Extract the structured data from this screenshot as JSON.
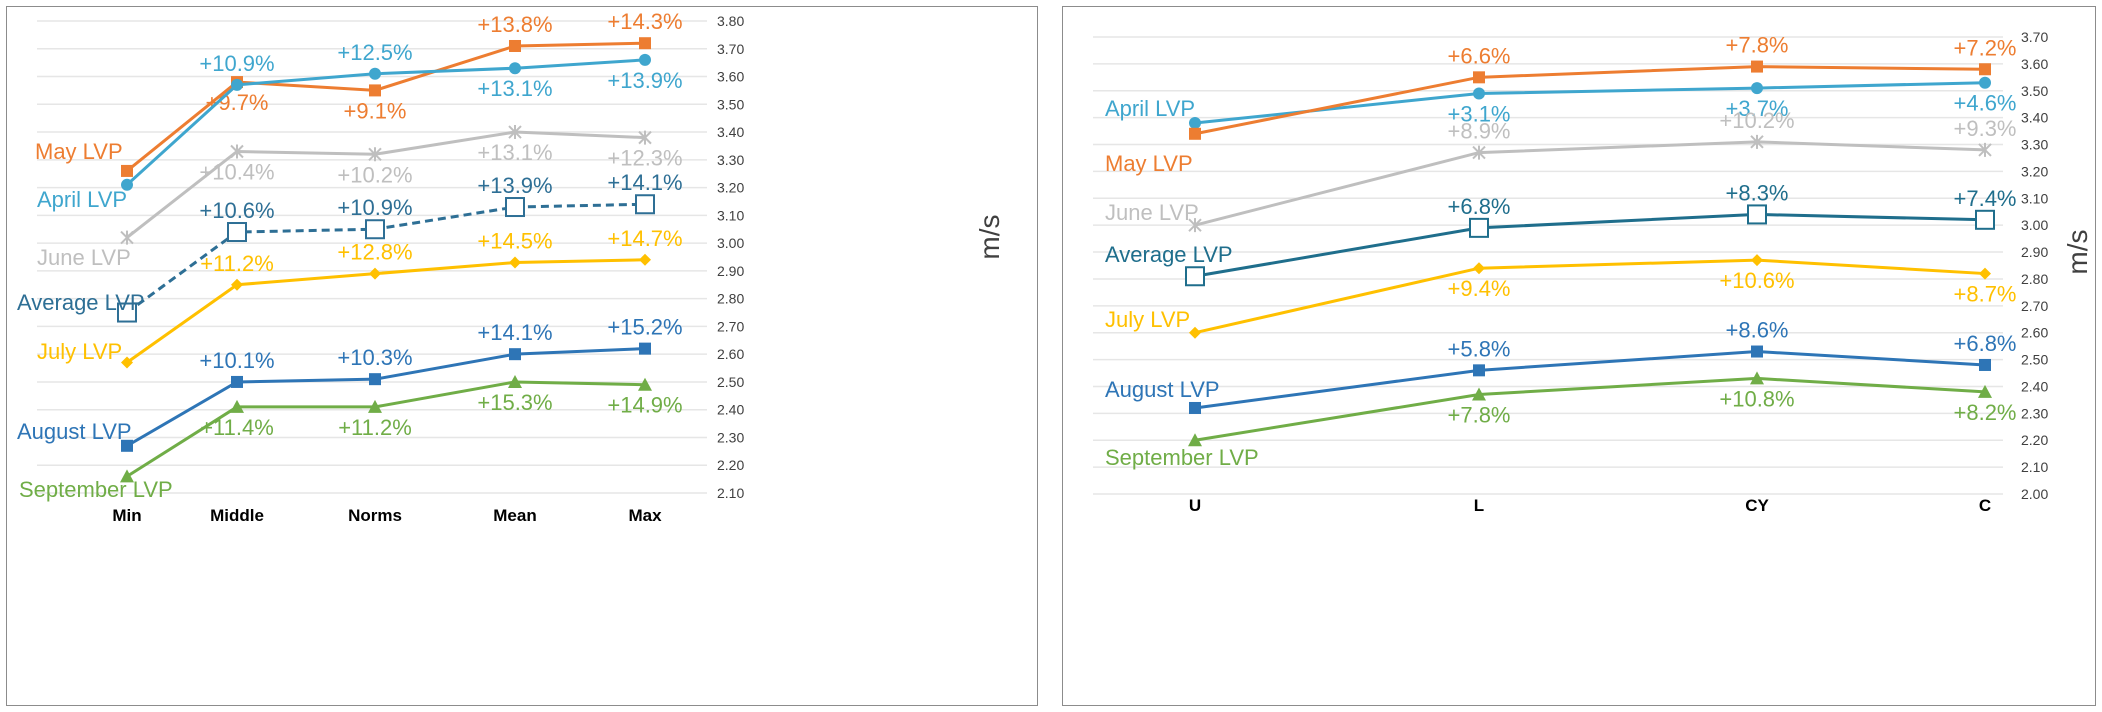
{
  "chart_data": [
    {
      "type": "line",
      "ylabel": "m/s",
      "ylim": [
        2.1,
        3.8
      ],
      "yticks": [
        "2.10",
        "2.20",
        "2.30",
        "2.40",
        "2.50",
        "2.60",
        "2.70",
        "2.80",
        "2.90",
        "3.00",
        "3.10",
        "3.20",
        "3.30",
        "3.40",
        "3.50",
        "3.60",
        "3.70",
        "3.80"
      ],
      "categories": [
        "Min",
        "Middle",
        "Norms",
        "Mean",
        "Max"
      ],
      "series": [
        {
          "name": "May LVP",
          "color": "#ED7D31",
          "marker": "square",
          "dashed": false,
          "values": [
            3.26,
            3.58,
            3.55,
            3.71,
            3.72
          ],
          "labels": [
            "",
            "+9.7%",
            "+9.1%",
            "+13.8%",
            "+14.3%"
          ],
          "labelPos": [
            "",
            "below",
            "below",
            "above",
            "above"
          ]
        },
        {
          "name": "April LVP",
          "color": "#3FA6CE",
          "marker": "circle",
          "dashed": false,
          "values": [
            3.21,
            3.57,
            3.61,
            3.63,
            3.66
          ],
          "labels": [
            "",
            "+10.9%",
            "+12.5%",
            "+13.1%",
            "+13.9%"
          ],
          "labelPos": [
            "",
            "above",
            "above",
            "below",
            "below"
          ]
        },
        {
          "name": "June LVP",
          "color": "#BFBFBF",
          "marker": "x",
          "dashed": false,
          "values": [
            3.02,
            3.33,
            3.32,
            3.4,
            3.38
          ],
          "labels": [
            "",
            "+10.4%",
            "+10.2%",
            "+13.1%",
            "+12.3%"
          ],
          "labelPos": [
            "",
            "below",
            "below",
            "below",
            "below"
          ]
        },
        {
          "name": "Average LVP",
          "color": "#2E6F95",
          "marker": "hollow-square",
          "dashed": true,
          "values": [
            2.75,
            3.04,
            3.05,
            3.13,
            3.14
          ],
          "labels": [
            "",
            "+10.6%",
            "+10.9%",
            "+13.9%",
            "+14.1%"
          ],
          "labelPos": [
            "",
            "above",
            "above",
            "above",
            "above"
          ]
        },
        {
          "name": "July LVP",
          "color": "#FFC000",
          "marker": "diamond",
          "dashed": false,
          "values": [
            2.57,
            2.85,
            2.89,
            2.93,
            2.94
          ],
          "labels": [
            "",
            "+11.2%",
            "+12.8%",
            "+14.5%",
            "+14.7%"
          ],
          "labelPos": [
            "",
            "above",
            "above",
            "above",
            "above"
          ]
        },
        {
          "name": "August LVP",
          "color": "#2E75B6",
          "marker": "square",
          "dashed": false,
          "values": [
            2.27,
            2.5,
            2.51,
            2.6,
            2.62
          ],
          "labels": [
            "",
            "+10.1%",
            "+10.3%",
            "+14.1%",
            "+15.2%"
          ],
          "labelPos": [
            "",
            "above",
            "above",
            "above",
            "above"
          ]
        },
        {
          "name": "September LVP",
          "color": "#70AD47",
          "marker": "triangle",
          "dashed": false,
          "values": [
            2.16,
            2.41,
            2.41,
            2.5,
            2.49
          ],
          "labels": [
            "",
            "+11.4%",
            "+11.2%",
            "+15.3%",
            "+14.9%"
          ],
          "labelPos": [
            "",
            "below",
            "below",
            "below",
            "below"
          ]
        }
      ]
    },
    {
      "type": "line",
      "ylabel": "m/s",
      "ylim": [
        2.0,
        3.7
      ],
      "yticks": [
        "2.00",
        "2.10",
        "2.20",
        "2.30",
        "2.40",
        "2.50",
        "2.60",
        "2.70",
        "2.80",
        "2.90",
        "3.00",
        "3.10",
        "3.20",
        "3.30",
        "3.40",
        "3.50",
        "3.60",
        "3.70"
      ],
      "categories": [
        "U",
        "L",
        "CY",
        "C"
      ],
      "series": [
        {
          "name": "April LVP",
          "color": "#3FA6CE",
          "marker": "circle",
          "dashed": false,
          "values": [
            3.38,
            3.49,
            3.51,
            3.53
          ],
          "labels": [
            "",
            "+3.1%",
            "+3.7%",
            "+4.6%"
          ],
          "labelPos": [
            "",
            "below",
            "below",
            "below"
          ]
        },
        {
          "name": "May LVP",
          "color": "#ED7D31",
          "marker": "square",
          "dashed": false,
          "values": [
            3.34,
            3.55,
            3.59,
            3.58
          ],
          "labels": [
            "",
            "+6.6%",
            "+7.8%",
            "+7.2%"
          ],
          "labelPos": [
            "",
            "above",
            "above",
            "above"
          ]
        },
        {
          "name": "June LVP",
          "color": "#BFBFBF",
          "marker": "x",
          "dashed": false,
          "values": [
            3.0,
            3.27,
            3.31,
            3.28
          ],
          "labels": [
            "",
            "+8.9%",
            "+10.2%",
            "+9.3%"
          ],
          "labelPos": [
            "",
            "above",
            "above",
            "above"
          ]
        },
        {
          "name": "Average LVP",
          "color": "#1F6E8C",
          "marker": "hollow-square",
          "dashed": false,
          "values": [
            2.81,
            2.99,
            3.04,
            3.02
          ],
          "labels": [
            "",
            "+6.8%",
            "+8.3%",
            "+7.4%"
          ],
          "labelPos": [
            "",
            "above",
            "above",
            "above"
          ]
        },
        {
          "name": "July LVP",
          "color": "#FFC000",
          "marker": "diamond",
          "dashed": false,
          "values": [
            2.6,
            2.84,
            2.87,
            2.82
          ],
          "labels": [
            "",
            "+9.4%",
            "+10.6%",
            "+8.7%"
          ],
          "labelPos": [
            "",
            "below",
            "below",
            "below"
          ]
        },
        {
          "name": "August LVP",
          "color": "#2E75B6",
          "marker": "square",
          "dashed": false,
          "values": [
            2.32,
            2.46,
            2.53,
            2.48
          ],
          "labels": [
            "",
            "+5.8%",
            "+8.6%",
            "+6.8%"
          ],
          "labelPos": [
            "",
            "above",
            "above",
            "above"
          ]
        },
        {
          "name": "September LVP",
          "color": "#70AD47",
          "marker": "triangle",
          "dashed": false,
          "values": [
            2.2,
            2.37,
            2.43,
            2.38
          ],
          "labels": [
            "",
            "+7.8%",
            "+10.8%",
            "+8.2%"
          ],
          "labelPos": [
            "",
            "below",
            "below",
            "below"
          ]
        }
      ]
    }
  ]
}
